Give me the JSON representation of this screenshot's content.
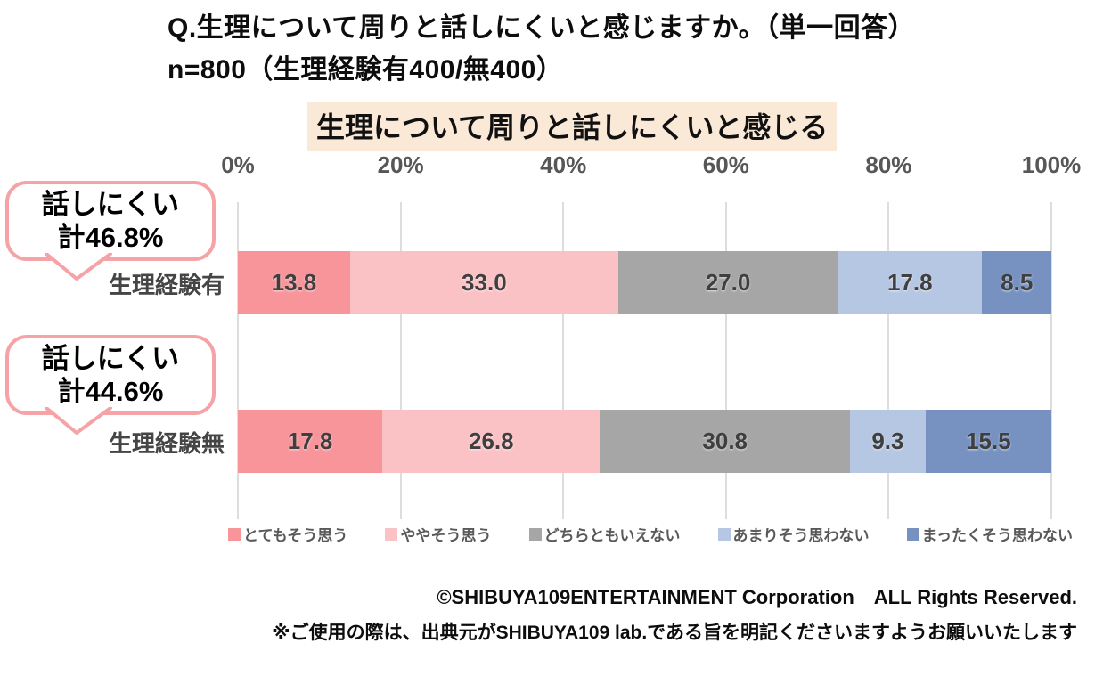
{
  "header": {
    "question_line1": "Q.生理について周りと話しにくいと感じますか。（単一回答）",
    "question_line2": "n=800（生理経験有400/無400）",
    "highlight_title": "生理について周りと話しにくいと感じる"
  },
  "chart_data": {
    "type": "bar",
    "orientation": "horizontal-stacked",
    "title": "生理について周りと話しにくいと感じる",
    "categories": [
      "生理経験有",
      "生理経験無"
    ],
    "series": [
      {
        "name": "とてもそう思う",
        "color": "#F7959B",
        "values": [
          13.8,
          17.8
        ]
      },
      {
        "name": "ややそう思う",
        "color": "#FBC2C6",
        "values": [
          33.0,
          26.8
        ]
      },
      {
        "name": "どちらともいえない",
        "color": "#A6A6A6",
        "values": [
          27.0,
          30.8
        ]
      },
      {
        "name": "あまりそう思わない",
        "color": "#B5C7E2",
        "values": [
          17.8,
          9.3
        ]
      },
      {
        "name": "まったくそう思わない",
        "color": "#7792C1",
        "values": [
          8.5,
          15.5
        ]
      }
    ],
    "x_ticks": [
      "0%",
      "20%",
      "40%",
      "60%",
      "80%",
      "100%"
    ],
    "xlim": [
      0,
      100
    ],
    "grid": true,
    "legend_position": "bottom"
  },
  "callouts": [
    {
      "line1": "話しにくい",
      "line2": "計46.8%"
    },
    {
      "line1": "話しにくい",
      "line2": "計44.6%"
    }
  ],
  "colors": {
    "highlight_bg": "#FBE9D8",
    "callout_border": "#F5A3A6",
    "gridline": "#DDDDDD",
    "tick_text": "#575757"
  },
  "footer": {
    "copyright": "©SHIBUYA109ENTERTAINMENT Corporation　ALL Rights Reserved.",
    "note": "※ご使用の際は、出典元がSHIBUYA109 lab.である旨を明記くださいますようお願いいたします"
  }
}
